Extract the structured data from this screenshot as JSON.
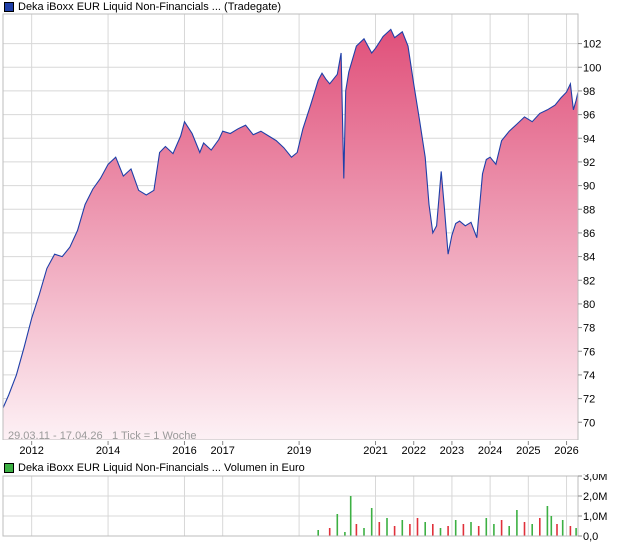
{
  "colors": {
    "price_line": "#1f3fa8",
    "area_top": "#e0507a",
    "area_bottom": "#fdf1f5",
    "grid": "#d8d8d8",
    "legend_price_swatch": "#1f3fa8",
    "legend_volume_swatch": "#3cb043",
    "volume_up": "#3cb043",
    "volume_down": "#e0303a"
  },
  "chart_data": [
    {
      "type": "area",
      "title": "Deka iBoxx EUR Liquid Non-Financials ... (Tradegate)",
      "date_range": "29.03.11 - 17.04.26",
      "tick_info": "1 Tick = 1 Woche",
      "x_tick_labels": [
        "2012",
        "2014",
        "2016",
        "2017",
        "2019",
        "2021",
        "2022",
        "2023",
        "2024",
        "2025",
        "2026"
      ],
      "x_ticks": [
        2012.0,
        2014.0,
        2016.0,
        2017.0,
        2019.0,
        2021.0,
        2022.0,
        2023.0,
        2024.0,
        2025.0,
        2026.0
      ],
      "xlim": [
        2011.25,
        2026.3
      ],
      "y_ticks": [
        70,
        72,
        74,
        76,
        78,
        80,
        82,
        84,
        86,
        88,
        90,
        92,
        94,
        96,
        98,
        100,
        102
      ],
      "ylim": [
        68.5,
        104.5
      ],
      "grid": true,
      "series": [
        {
          "name": "Deka iBoxx EUR Liquid Non-Financials ... (Tradegate)",
          "x": [
            2011.25,
            2011.4,
            2011.6,
            2011.8,
            2012.0,
            2012.2,
            2012.4,
            2012.6,
            2012.8,
            2013.0,
            2013.2,
            2013.4,
            2013.6,
            2013.8,
            2014.0,
            2014.2,
            2014.4,
            2014.6,
            2014.8,
            2015.0,
            2015.2,
            2015.35,
            2015.5,
            2015.7,
            2015.9,
            2016.0,
            2016.2,
            2016.4,
            2016.5,
            2016.7,
            2016.9,
            2017.0,
            2017.2,
            2017.4,
            2017.6,
            2017.8,
            2018.0,
            2018.2,
            2018.4,
            2018.6,
            2018.8,
            2018.95,
            2019.1,
            2019.3,
            2019.5,
            2019.6,
            2019.7,
            2019.8,
            2020.0,
            2020.1,
            2020.17,
            2020.22,
            2020.3,
            2020.5,
            2020.7,
            2020.9,
            2021.0,
            2021.2,
            2021.4,
            2021.5,
            2021.7,
            2021.85,
            2022.0,
            2022.15,
            2022.3,
            2022.4,
            2022.5,
            2022.6,
            2022.72,
            2022.8,
            2022.9,
            2023.0,
            2023.1,
            2023.2,
            2023.35,
            2023.5,
            2023.65,
            2023.8,
            2023.9,
            2024.0,
            2024.15,
            2024.3,
            2024.5,
            2024.7,
            2024.9,
            2025.1,
            2025.3,
            2025.5,
            2025.7,
            2025.85,
            2026.0,
            2026.1,
            2026.18,
            2026.25,
            2026.3
          ],
          "values": [
            71.2,
            72.3,
            74.0,
            76.3,
            78.8,
            80.8,
            83.0,
            84.2,
            84.0,
            84.8,
            86.2,
            88.4,
            89.7,
            90.6,
            91.8,
            92.4,
            90.8,
            91.4,
            89.6,
            89.2,
            89.6,
            92.8,
            93.3,
            92.7,
            94.2,
            95.4,
            94.4,
            92.8,
            93.6,
            93.0,
            93.9,
            94.6,
            94.4,
            94.8,
            95.1,
            94.3,
            94.6,
            94.2,
            93.8,
            93.2,
            92.4,
            92.8,
            94.8,
            96.8,
            98.9,
            99.5,
            99.0,
            98.6,
            99.4,
            101.2,
            90.6,
            98.0,
            99.6,
            101.8,
            102.4,
            101.2,
            101.6,
            102.6,
            103.2,
            102.5,
            103.0,
            101.8,
            98.6,
            95.6,
            92.4,
            88.4,
            86.0,
            86.6,
            91.2,
            88.2,
            84.2,
            85.8,
            86.8,
            87.0,
            86.6,
            86.9,
            85.6,
            91.0,
            92.2,
            92.4,
            91.8,
            93.8,
            94.6,
            95.2,
            95.8,
            95.4,
            96.1,
            96.4,
            96.8,
            97.4,
            97.9,
            98.6,
            96.4,
            97.2,
            97.9
          ]
        }
      ]
    },
    {
      "type": "bar",
      "title": "Deka iBoxx EUR Liquid Non-Financials ... Volumen in Euro",
      "y_tick_labels": [
        "0,0",
        "1,0M",
        "2,0M",
        "3,0M"
      ],
      "y_ticks": [
        0,
        1.0,
        2.0,
        3.0
      ],
      "ylim": [
        0,
        3.0
      ],
      "unit": "Mio. Euro",
      "xlim": [
        2011.25,
        2026.3
      ],
      "grid": true,
      "series": [
        {
          "name": "Volumen",
          "x": [
            2019.5,
            2019.8,
            2020.0,
            2020.2,
            2020.35,
            2020.5,
            2020.7,
            2020.9,
            2021.1,
            2021.3,
            2021.5,
            2021.7,
            2021.9,
            2022.1,
            2022.3,
            2022.5,
            2022.7,
            2022.9,
            2023.1,
            2023.3,
            2023.5,
            2023.7,
            2023.9,
            2024.1,
            2024.3,
            2024.5,
            2024.7,
            2024.9,
            2025.1,
            2025.3,
            2025.5,
            2025.6,
            2025.75,
            2025.9,
            2026.1,
            2026.25
          ],
          "values": [
            0.3,
            0.4,
            1.1,
            0.2,
            2.0,
            0.6,
            0.4,
            1.4,
            0.7,
            0.9,
            0.5,
            0.8,
            0.6,
            0.9,
            0.7,
            0.6,
            0.4,
            0.5,
            0.8,
            0.6,
            0.7,
            0.5,
            0.9,
            0.6,
            0.8,
            0.5,
            1.3,
            0.7,
            0.6,
            0.9,
            1.5,
            1.0,
            0.6,
            0.8,
            0.5,
            0.4
          ],
          "direction": [
            "up",
            "down",
            "up",
            "up",
            "up",
            "down",
            "up",
            "up",
            "down",
            "up",
            "down",
            "up",
            "down",
            "down",
            "up",
            "down",
            "up",
            "down",
            "up",
            "down",
            "up",
            "down",
            "up",
            "up",
            "down",
            "up",
            "up",
            "down",
            "up",
            "down",
            "up",
            "up",
            "down",
            "up",
            "down",
            "up"
          ]
        }
      ]
    }
  ]
}
